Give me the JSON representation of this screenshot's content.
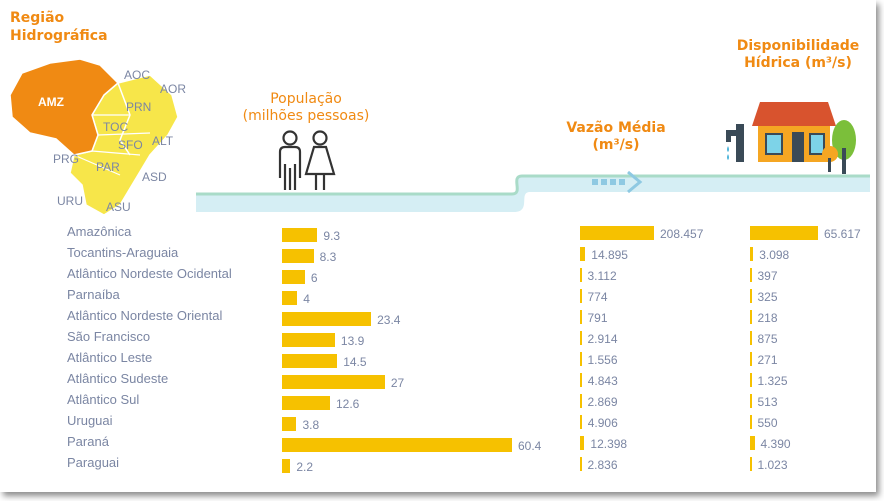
{
  "header": {
    "region_title": "Região\nHidrográfica",
    "population_title": "População\n(milhões pessoas)",
    "flow_title": "Vazão Média\n(m³/s)",
    "availability_title": "Disponibilidade\nHídrica (m³/s)"
  },
  "map": {
    "labels": [
      "AMZ",
      "AOC",
      "AOR",
      "PRN",
      "TOC",
      "SFO",
      "ALT",
      "PRG",
      "PAR",
      "ASD",
      "URU",
      "ASU"
    ]
  },
  "icons": {
    "people": "people-icon",
    "pipe": "water-pipe-icon",
    "house": "house-icon",
    "tree": "tree-icon",
    "arrow": "flow-arrow-icon"
  },
  "colors": {
    "accent": "#f08a13",
    "bar": "#f6c100",
    "text": "#7b86a3",
    "water": "#d5eef4",
    "map_amz": "#f08a13",
    "map_yellow": "#f7e64a"
  },
  "chart_data": {
    "type": "bar",
    "categories": [
      "Amazônica",
      "Tocantins-Araguaia",
      "Atlântico Nordeste Ocidental",
      "Parnaíba",
      "Atlântico Nordeste Oriental",
      "São Francisco",
      "Atlântico Leste",
      "Atlântico Sudeste",
      "Atlântico Sul",
      "Uruguai",
      "Paraná",
      "Paraguai"
    ],
    "series": [
      {
        "name": "População (milhões pessoas)",
        "values": [
          9.3,
          8.3,
          6,
          4,
          23.4,
          13.9,
          14.5,
          27,
          12.6,
          3.8,
          60.4,
          2.2
        ],
        "labels": [
          "9.3",
          "8.3",
          "6",
          "4",
          "23.4",
          "13.9",
          "14.5",
          "27",
          "12.6",
          "3.8",
          "60.4",
          "2.2"
        ]
      },
      {
        "name": "Vazão Média (m³/s)",
        "values": [
          208457,
          14895,
          3112,
          774,
          791,
          2914,
          1556,
          4843,
          2869,
          4906,
          12398,
          2836
        ],
        "labels": [
          "208.457",
          "14.895",
          "3.112",
          "774",
          "791",
          "2.914",
          "1.556",
          "4.843",
          "2.869",
          "4.906",
          "12.398",
          "2.836"
        ]
      },
      {
        "name": "Disponibilidade Hídrica (m³/s)",
        "values": [
          65617,
          3098,
          397,
          325,
          218,
          875,
          271,
          1325,
          513,
          550,
          4390,
          1023
        ],
        "labels": [
          "65.617",
          "3.098",
          "397",
          "325",
          "218",
          "875",
          "271",
          "1.325",
          "513",
          "550",
          "4.390",
          "1.023"
        ]
      }
    ]
  }
}
